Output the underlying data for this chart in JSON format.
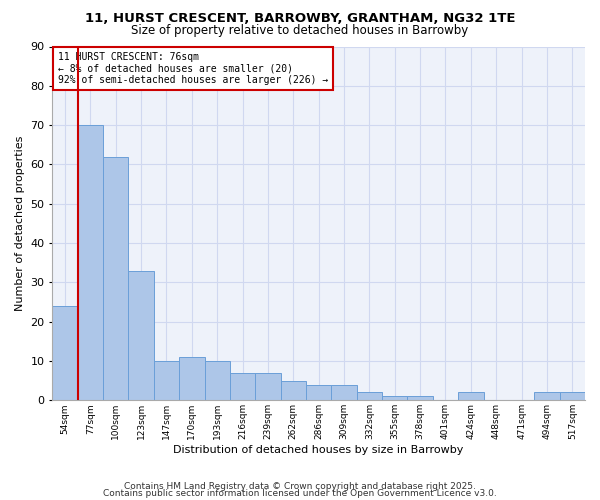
{
  "title1": "11, HURST CRESCENT, BARROWBY, GRANTHAM, NG32 1TE",
  "title2": "Size of property relative to detached houses in Barrowby",
  "xlabel": "Distribution of detached houses by size in Barrowby",
  "ylabel": "Number of detached properties",
  "categories": [
    "54sqm",
    "77sqm",
    "100sqm",
    "123sqm",
    "147sqm",
    "170sqm",
    "193sqm",
    "216sqm",
    "239sqm",
    "262sqm",
    "286sqm",
    "309sqm",
    "332sqm",
    "355sqm",
    "378sqm",
    "401sqm",
    "424sqm",
    "448sqm",
    "471sqm",
    "494sqm",
    "517sqm"
  ],
  "values": [
    24,
    70,
    62,
    33,
    10,
    11,
    10,
    7,
    7,
    5,
    4,
    4,
    2,
    1,
    1,
    0,
    2,
    0,
    0,
    2,
    2
  ],
  "bar_color": "#adc6e8",
  "bar_edge_color": "#6a9fd8",
  "highlight_index": 1,
  "highlight_line_color": "#cc0000",
  "annotation_text": "11 HURST CRESCENT: 76sqm\n← 8% of detached houses are smaller (20)\n92% of semi-detached houses are larger (226) →",
  "annotation_box_color": "#cc0000",
  "ylim": [
    0,
    90
  ],
  "yticks": [
    0,
    10,
    20,
    30,
    40,
    50,
    60,
    70,
    80,
    90
  ],
  "bg_color": "#eef2fa",
  "grid_color": "#d0d8f0",
  "footer1": "Contains HM Land Registry data © Crown copyright and database right 2025.",
  "footer2": "Contains public sector information licensed under the Open Government Licence v3.0."
}
